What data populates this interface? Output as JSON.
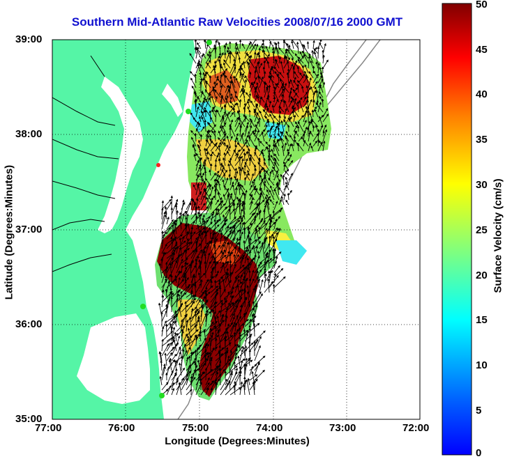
{
  "title": "Southern Mid-Atlantic Raw Velocities 2008/07/16 2000 GMT",
  "x_axis": {
    "label": "Longitude (Degrees:Minutes)",
    "ticks": [
      "77:00",
      "76:00",
      "75:00",
      "74:00",
      "73:00",
      "72:00"
    ]
  },
  "y_axis": {
    "label": "Latitude (Degrees:Minutes)",
    "ticks": [
      "39:00",
      "38:00",
      "37:00",
      "36:00",
      "35:00"
    ]
  },
  "colorbar": {
    "label": "Surface Velocity (cm/s)",
    "ticks": [
      "50",
      "45",
      "40",
      "35",
      "30",
      "25",
      "20",
      "15",
      "10",
      "5",
      "0"
    ],
    "min": 0,
    "max": 50,
    "colormap": "jet"
  },
  "map": {
    "extent": {
      "lon": [
        -77,
        -72
      ],
      "lat": [
        35,
        39
      ]
    },
    "land_color": "#55f5a6",
    "grid": "dotted",
    "site_markers": [
      "green",
      "green",
      "red",
      "green",
      "green"
    ]
  }
}
